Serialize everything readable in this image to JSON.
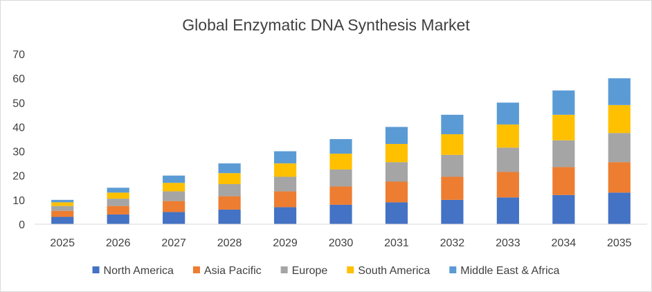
{
  "chart_data": {
    "type": "bar",
    "stacked": true,
    "title": "Global Enzymatic DNA Synthesis Market",
    "xlabel": "",
    "ylabel": "",
    "ylim": [
      0,
      70
    ],
    "yticks": [
      "0",
      "10",
      "20",
      "30",
      "40",
      "50",
      "60",
      "70"
    ],
    "grid": false,
    "legend_position": "bottom",
    "categories": [
      "2025",
      "2026",
      "2027",
      "2028",
      "2029",
      "2030",
      "2031",
      "2032",
      "2033",
      "2034",
      "2035"
    ],
    "series": [
      {
        "name": "North America",
        "color": "#4472C4",
        "values": [
          3,
          4,
          5,
          6,
          7,
          8,
          9,
          10,
          11,
          12,
          13
        ]
      },
      {
        "name": "Asia Pacific",
        "color": "#ED7D31",
        "values": [
          2.5,
          3.5,
          4.5,
          5.5,
          6.5,
          7.5,
          8.5,
          9.5,
          10.5,
          11.5,
          12.5
        ]
      },
      {
        "name": "Europe",
        "color": "#A5A5A5",
        "values": [
          2,
          3,
          4,
          5,
          6,
          7,
          8,
          9,
          10,
          11,
          12
        ]
      },
      {
        "name": "South America",
        "color": "#FFC000",
        "values": [
          1.5,
          2.5,
          3.5,
          4.5,
          5.5,
          6.5,
          7.5,
          8.5,
          9.5,
          10.5,
          11.5
        ]
      },
      {
        "name": "Middle East & Africa",
        "color": "#5B9BD5",
        "values": [
          1,
          2,
          3,
          4,
          5,
          6,
          7,
          8,
          9,
          10,
          11
        ]
      }
    ]
  }
}
